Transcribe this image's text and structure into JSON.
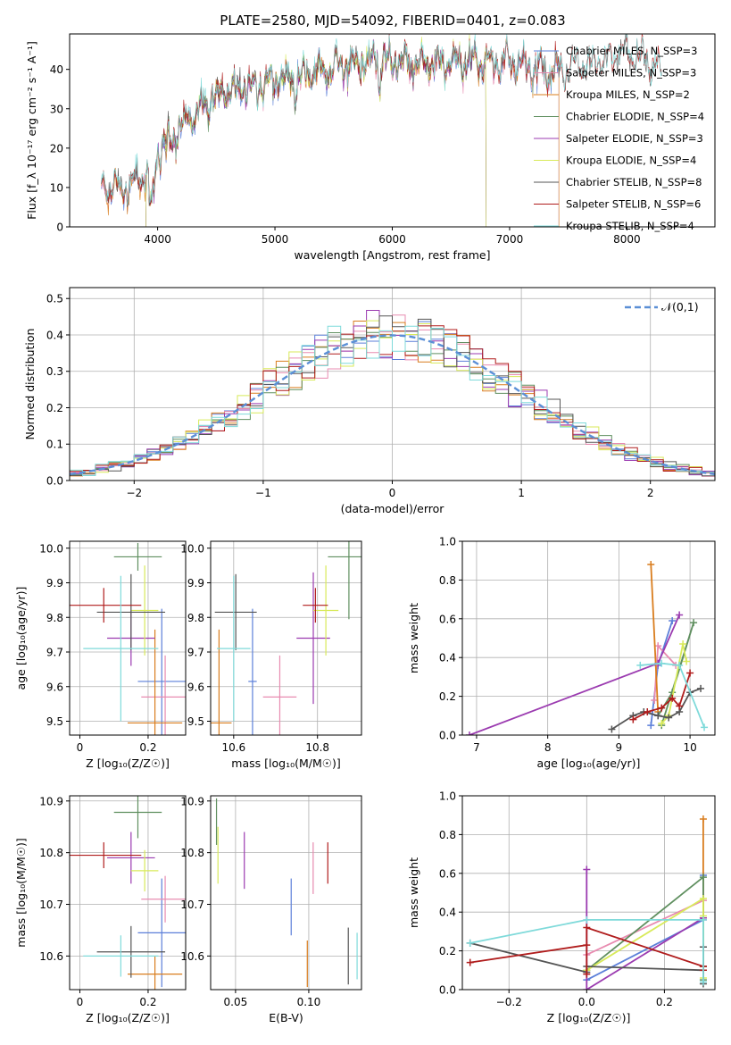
{
  "figure": {
    "title": "PLATE=2580, MJD=54092, FIBERID=0401, z=0.083"
  },
  "colors": {
    "Chabrier MILES": "#5b7fd9",
    "Salpeter MILES": "#e88bb0",
    "Kroupa MILES": "#d97d1e",
    "Chabrier ELODIE": "#5f8f5f",
    "Salpeter ELODIE": "#9b3bb0",
    "Kroupa ELODIE": "#d8ea5a",
    "Chabrier STELIB": "#555555",
    "Salpeter STELIB": "#b01c1c",
    "Kroupa STELIB": "#7fdada",
    "gauss": "#5b8fd6"
  },
  "chart_data": [
    {
      "id": "spectrum",
      "type": "line",
      "xlabel": "wavelength [Angstrom, rest frame]",
      "ylabel": "Flux [f_λ 10⁻¹⁷ erg cm⁻² s⁻¹ A⁻¹]",
      "xlim": [
        3250,
        8750
      ],
      "ylim": [
        0,
        49
      ],
      "xticks": [
        4000,
        5000,
        6000,
        7000,
        8000
      ],
      "yticks": [
        0,
        10,
        20,
        30,
        40
      ],
      "legend_position": "right",
      "legend": [
        "Chabrier MILES, N_SSP=3",
        "Salpeter MILES, N_SSP=3",
        "Kroupa MILES, N_SSP=2",
        "Chabrier ELODIE, N_SSP=4",
        "Salpeter ELODIE, N_SSP=3",
        "Kroupa ELODIE, N_SSP=4",
        "Chabrier STELIB, N_SSP=8",
        "Salpeter STELIB, N_SSP=6",
        "Kroupa STELIB, N_SSP=4"
      ],
      "continuum": {
        "x": [
          3500,
          3600,
          3700,
          3800,
          3900,
          3950,
          4000,
          4100,
          4200,
          4300,
          4400,
          4500,
          4600,
          4800,
          5000,
          5200,
          5400,
          5600,
          5800,
          6000,
          6200,
          6400,
          6600,
          6800,
          7000,
          7200,
          7400,
          7600,
          7800,
          8000,
          8200,
          8300
        ],
        "y": [
          11,
          10,
          9,
          12,
          13,
          11,
          18,
          22,
          25,
          28,
          31,
          33,
          34,
          36,
          37,
          38,
          40,
          41,
          42,
          42,
          41,
          42,
          42,
          42,
          42,
          40,
          39,
          41,
          42,
          44,
          41,
          38
        ]
      },
      "series_ranges": [
        {
          "name": "Chabrier MILES",
          "xmin": 3520,
          "xmax": 7420
        },
        {
          "name": "Salpeter MILES",
          "xmin": 3520,
          "xmax": 7420
        },
        {
          "name": "Kroupa MILES",
          "xmin": 3520,
          "xmax": 7420
        },
        {
          "name": "Chabrier ELODIE",
          "xmin": 3900,
          "xmax": 6800
        },
        {
          "name": "Salpeter ELODIE",
          "xmin": 3900,
          "xmax": 6800
        },
        {
          "name": "Kroupa ELODIE",
          "xmin": 3900,
          "xmax": 6800
        },
        {
          "name": "Chabrier STELIB",
          "xmin": 3520,
          "xmax": 8300
        },
        {
          "name": "Salpeter STELIB",
          "xmin": 3520,
          "xmax": 8300
        },
        {
          "name": "Kroupa STELIB",
          "xmin": 3520,
          "xmax": 8300
        }
      ]
    },
    {
      "id": "residuals",
      "type": "histogram",
      "xlabel": "(data-model)/error",
      "ylabel": "Normed distribution",
      "xlim": [
        -2.5,
        2.5
      ],
      "ylim": [
        0,
        0.53
      ],
      "xticks": [
        -2,
        -1,
        0,
        1,
        2
      ],
      "yticks": [
        0.0,
        0.1,
        0.2,
        0.3,
        0.4,
        0.5
      ],
      "grid": true,
      "legend_position": "top-right",
      "legend": [
        "𝒩(0,1)"
      ],
      "bin_width": 0.1,
      "bin_start": -2.5,
      "gaussian": {
        "mean": 0,
        "sigma": 1
      }
    },
    {
      "id": "z-age",
      "type": "errorbar",
      "xlabel": "Z [log₁₀(Z/Z☉)]",
      "ylabel": "age  [log₁₀(age/yr)]",
      "xlim": [
        -0.03,
        0.31
      ],
      "ylim": [
        9.46,
        10.02
      ],
      "xticks": [
        0.0,
        0.2
      ],
      "yticks": [
        9.5,
        9.6,
        9.7,
        9.8,
        9.9,
        10.0
      ],
      "grid": true,
      "points": [
        {
          "name": "Chabrier MILES",
          "x": 0.24,
          "xerr": 0.07,
          "y": 9.615,
          "yerr": 0.21
        },
        {
          "name": "Salpeter MILES",
          "x": 0.25,
          "xerr": 0.07,
          "y": 9.57,
          "yerr": 0.12
        },
        {
          "name": "Kroupa MILES",
          "x": 0.22,
          "xerr": 0.08,
          "y": 9.495,
          "yerr": 0.27
        },
        {
          "name": "Chabrier ELODIE",
          "x": 0.17,
          "xerr": 0.07,
          "y": 9.975,
          "yerr": 0.04
        },
        {
          "name": "Salpeter ELODIE",
          "x": 0.15,
          "xerr": 0.07,
          "y": 9.74,
          "yerr": 0.08
        },
        {
          "name": "Kroupa ELODIE",
          "x": 0.19,
          "xerr": 0.04,
          "y": 9.82,
          "yerr": 0.13
        },
        {
          "name": "Chabrier STELIB",
          "x": 0.15,
          "xerr": 0.1,
          "y": 9.815,
          "yerr": 0.11
        },
        {
          "name": "Salpeter STELIB",
          "x": 0.07,
          "xerr": 0.11,
          "y": 9.835,
          "yerr": 0.05
        },
        {
          "name": "Kroupa STELIB",
          "x": 0.12,
          "xerr": 0.11,
          "y": 9.71,
          "yerr": 0.21
        }
      ]
    },
    {
      "id": "mass-age",
      "type": "errorbar",
      "xlabel": "mass [log₁₀(M/M☉)]",
      "ylabel": "",
      "xlim": [
        10.545,
        10.905
      ],
      "ylim": [
        9.46,
        10.02
      ],
      "xticks": [
        10.6,
        10.8
      ],
      "yticks": [
        9.5,
        9.6,
        9.7,
        9.8,
        9.9,
        10.0
      ],
      "grid": true,
      "points": [
        {
          "name": "Chabrier MILES",
          "x": 10.645,
          "xerr": 0.01,
          "y": 9.615,
          "yerr": 0.21
        },
        {
          "name": "Salpeter MILES",
          "x": 10.71,
          "xerr": 0.04,
          "y": 9.57,
          "yerr": 0.12
        },
        {
          "name": "Kroupa MILES",
          "x": 10.565,
          "xerr": 0.03,
          "y": 9.495,
          "yerr": 0.27
        },
        {
          "name": "Chabrier ELODIE",
          "x": 10.875,
          "xerr": 0.05,
          "y": 9.975,
          "yerr": 0.18
        },
        {
          "name": "Salpeter ELODIE",
          "x": 10.79,
          "xerr": 0.04,
          "y": 9.74,
          "yerr": 0.19
        },
        {
          "name": "Kroupa ELODIE",
          "x": 10.82,
          "xerr": 0.03,
          "y": 9.82,
          "yerr": 0.13
        },
        {
          "name": "Chabrier STELIB",
          "x": 10.605,
          "xerr": 0.05,
          "y": 9.815,
          "yerr": 0.11
        },
        {
          "name": "Salpeter STELIB",
          "x": 10.795,
          "xerr": 0.03,
          "y": 9.835,
          "yerr": 0.05
        },
        {
          "name": "Kroupa STELIB",
          "x": 10.6,
          "xerr": 0.04,
          "y": 9.71,
          "yerr": 0.21
        }
      ]
    },
    {
      "id": "age-weight",
      "type": "line",
      "xlabel": "age  [log₁₀(age/yr)]",
      "ylabel": "mass weight",
      "xlim": [
        6.8,
        10.35
      ],
      "ylim": [
        0,
        1.0
      ],
      "xticks": [
        7,
        8,
        9,
        10
      ],
      "yticks": [
        0.0,
        0.2,
        0.4,
        0.6,
        0.8,
        1.0
      ],
      "grid": true,
      "series": [
        {
          "name": "Chabrier MILES",
          "x": [
            9.45,
            9.55,
            9.75
          ],
          "y": [
            0.05,
            0.36,
            0.59
          ]
        },
        {
          "name": "Salpeter MILES",
          "x": [
            9.5,
            9.55,
            9.8
          ],
          "y": [
            0.18,
            0.46,
            0.36
          ]
        },
        {
          "name": "Kroupa MILES",
          "x": [
            9.45,
            9.55
          ],
          "y": [
            0.88,
            0.12
          ]
        },
        {
          "name": "Chabrier ELODIE",
          "x": [
            9.55,
            9.75,
            10.05,
            9.6
          ],
          "y": [
            0.1,
            0.22,
            0.58,
            0.05
          ]
        },
        {
          "name": "Salpeter ELODIE",
          "x": [
            6.9,
            9.55,
            9.85
          ],
          "y": [
            0.0,
            0.37,
            0.62
          ]
        },
        {
          "name": "Kroupa ELODIE",
          "x": [
            9.6,
            9.7,
            9.9,
            9.95
          ],
          "y": [
            0.06,
            0.1,
            0.47,
            0.38
          ]
        },
        {
          "name": "Chabrier STELIB",
          "x": [
            8.9,
            9.2,
            9.35,
            9.55,
            9.7,
            9.85,
            10.0,
            10.15
          ],
          "y": [
            0.03,
            0.1,
            0.12,
            0.1,
            0.09,
            0.12,
            0.22,
            0.24
          ]
        },
        {
          "name": "Salpeter STELIB",
          "x": [
            9.2,
            9.4,
            9.6,
            9.75,
            9.85,
            10.0
          ],
          "y": [
            0.08,
            0.12,
            0.14,
            0.19,
            0.15,
            0.32
          ]
        },
        {
          "name": "Kroupa STELIB",
          "x": [
            9.3,
            9.6,
            9.85,
            10.2
          ],
          "y": [
            0.36,
            0.37,
            0.36,
            0.04
          ]
        }
      ]
    },
    {
      "id": "z-mass",
      "type": "errorbar",
      "xlabel": "Z [log₁₀(Z/Z☉)]",
      "ylabel": "mass [log₁₀(M/M☉)]",
      "xlim": [
        -0.03,
        0.31
      ],
      "ylim": [
        10.535,
        10.91
      ],
      "xticks": [
        0.0,
        0.2
      ],
      "yticks": [
        10.6,
        10.7,
        10.8,
        10.9
      ],
      "grid": true,
      "points": [
        {
          "name": "Chabrier MILES",
          "x": 0.24,
          "xerr": 0.07,
          "y": 10.645,
          "yerr": 0.105
        },
        {
          "name": "Salpeter MILES",
          "x": 0.25,
          "xerr": 0.07,
          "y": 10.71,
          "yerr": 0.045
        },
        {
          "name": "Kroupa MILES",
          "x": 0.22,
          "xerr": 0.08,
          "y": 10.565,
          "yerr": 0.035
        },
        {
          "name": "Chabrier ELODIE",
          "x": 0.17,
          "xerr": 0.07,
          "y": 10.878,
          "yerr": 0.05
        },
        {
          "name": "Salpeter ELODIE",
          "x": 0.15,
          "xerr": 0.07,
          "y": 10.79,
          "yerr": 0.05
        },
        {
          "name": "Kroupa ELODIE",
          "x": 0.19,
          "xerr": 0.04,
          "y": 10.765,
          "yerr": 0.04
        },
        {
          "name": "Chabrier STELIB",
          "x": 0.15,
          "xerr": 0.1,
          "y": 10.608,
          "yerr": 0.05
        },
        {
          "name": "Salpeter STELIB",
          "x": 0.07,
          "xerr": 0.11,
          "y": 10.795,
          "yerr": 0.025
        },
        {
          "name": "Kroupa STELIB",
          "x": 0.12,
          "xerr": 0.11,
          "y": 10.6,
          "yerr": 0.04
        }
      ]
    },
    {
      "id": "ebv-mass",
      "type": "errorbar",
      "xlabel": "E(B-V)",
      "ylabel": "",
      "xlim": [
        0.033,
        0.136
      ],
      "ylim": [
        10.535,
        10.91
      ],
      "xticks": [
        0.05,
        0.1
      ],
      "xtick_labels": [
        "0.05",
        "0.10"
      ],
      "yticks": [
        10.6,
        10.7,
        10.8,
        10.9
      ],
      "grid": true,
      "points": [
        {
          "name": "Chabrier MILES",
          "x": 0.088,
          "xerr": 0,
          "y": 10.695,
          "yerr": 0.055
        },
        {
          "name": "Salpeter MILES",
          "x": 0.103,
          "xerr": 0,
          "y": 10.77,
          "yerr": 0.05
        },
        {
          "name": "Kroupa MILES",
          "x": 0.099,
          "xerr": 0,
          "y": 10.585,
          "yerr": 0.045
        },
        {
          "name": "Chabrier ELODIE",
          "x": 0.037,
          "xerr": 0,
          "y": 10.86,
          "yerr": 0.045
        },
        {
          "name": "Salpeter ELODIE",
          "x": 0.056,
          "xerr": 0,
          "y": 10.785,
          "yerr": 0.055
        },
        {
          "name": "Kroupa ELODIE",
          "x": 0.038,
          "xerr": 0,
          "y": 10.795,
          "yerr": 0.055
        },
        {
          "name": "Chabrier STELIB",
          "x": 0.127,
          "xerr": 0,
          "y": 10.6,
          "yerr": 0.055
        },
        {
          "name": "Salpeter STELIB",
          "x": 0.113,
          "xerr": 0,
          "y": 10.78,
          "yerr": 0.04
        },
        {
          "name": "Kroupa STELIB",
          "x": 0.133,
          "xerr": 0,
          "y": 10.6,
          "yerr": 0.045
        }
      ]
    },
    {
      "id": "z-weight",
      "type": "line",
      "xlabel": "Z [log₁₀(Z/Z☉)]",
      "ylabel": "mass weight",
      "xlim": [
        -0.32,
        0.33
      ],
      "ylim": [
        0,
        1.0
      ],
      "xticks": [
        -0.2,
        0.0,
        0.2
      ],
      "xtick_labels": [
        "−0.2",
        "0.0",
        "0.2"
      ],
      "yticks": [
        0.0,
        0.2,
        0.4,
        0.6,
        0.8,
        1.0
      ],
      "grid": true,
      "series": [
        {
          "name": "Chabrier MILES",
          "x": [
            0.0,
            0.3,
            0.3
          ],
          "y": [
            0.05,
            0.36,
            0.59
          ]
        },
        {
          "name": "Salpeter MILES",
          "x": [
            0.0,
            0.3,
            0.3
          ],
          "y": [
            0.18,
            0.46,
            0.36
          ]
        },
        {
          "name": "Kroupa MILES",
          "x": [
            0.3,
            0.3
          ],
          "y": [
            0.88,
            0.12
          ]
        },
        {
          "name": "Chabrier ELODIE",
          "x": [
            0.0,
            0.3,
            0.3,
            0.3
          ],
          "y": [
            0.1,
            0.58,
            0.22,
            0.05
          ]
        },
        {
          "name": "Salpeter ELODIE",
          "x": [
            0.0,
            0.0,
            0.3,
            0.3
          ],
          "y": [
            0.62,
            0.0,
            0.37,
            0.37
          ]
        },
        {
          "name": "Kroupa ELODIE",
          "x": [
            0.0,
            0.3,
            0.3,
            0.3
          ],
          "y": [
            0.1,
            0.47,
            0.38,
            0.06
          ]
        },
        {
          "name": "Chabrier STELIB",
          "x": [
            -0.3,
            0.0,
            0.0,
            0.3,
            0.3,
            0.3,
            0.3,
            0.3
          ],
          "y": [
            0.24,
            0.09,
            0.12,
            0.1,
            0.03,
            0.12,
            0.22,
            0.1
          ]
        },
        {
          "name": "Salpeter STELIB",
          "x": [
            -0.3,
            0.0,
            0.0,
            0.0,
            0.3,
            0.3
          ],
          "y": [
            0.14,
            0.23,
            0.08,
            0.32,
            0.12,
            0.1
          ]
        },
        {
          "name": "Kroupa STELIB",
          "x": [
            -0.3,
            0.0,
            0.3,
            0.3
          ],
          "y": [
            0.24,
            0.36,
            0.36,
            0.04
          ]
        }
      ]
    }
  ]
}
